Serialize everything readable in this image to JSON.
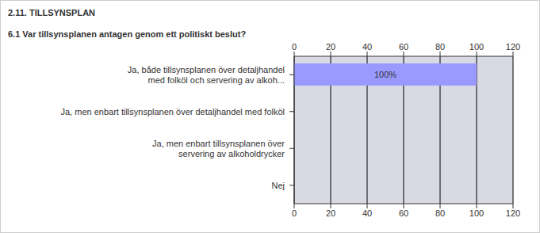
{
  "chart_data": {
    "type": "bar",
    "title": "2.11. TILLSYNSPLAN",
    "subtitle": "6.1 Var tillsynsplanen antagen genom ett politiskt beslut?",
    "orientation": "horizontal",
    "categories": [
      "Ja, både tillsynsplanen över detaljhandel med folköl och servering av alkoh...",
      "Ja, men enbart tillsynsplanen över detaljhandel med folköl",
      "Ja, men enbart tillsynsplanen över servering av alkoholdrycker",
      "Nej"
    ],
    "values": [
      100,
      0,
      0,
      0
    ],
    "value_labels": [
      "100%",
      null,
      null,
      null
    ],
    "data_labels": true,
    "color": "#9999ff",
    "xlim": [
      0,
      120
    ],
    "xticks": [
      0,
      20,
      40,
      60,
      80,
      100,
      120
    ],
    "grid": true
  }
}
